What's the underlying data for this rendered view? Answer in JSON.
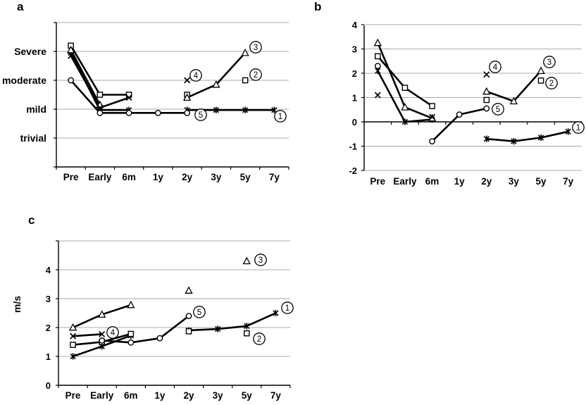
{
  "page": {
    "background": "#ffffff",
    "line_color": "#000000",
    "gridline_color": "#a9a9a9"
  },
  "chart_data": [
    {
      "id": "a",
      "panel_label": "a",
      "type": "line",
      "categories": [
        "Pre",
        "Early",
        "6m",
        "1y",
        "2y",
        "3y",
        "5y",
        "7y"
      ],
      "y_axis": {
        "kind": "category",
        "ticks": [
          {
            "v": 4,
            "label": "Severe"
          },
          {
            "v": 3,
            "label": "moderate"
          },
          {
            "v": 2,
            "label": "mild"
          },
          {
            "v": 1,
            "label": "trivial"
          }
        ],
        "gridline_values": [
          1,
          2,
          3,
          4,
          5
        ],
        "ylim": [
          0,
          5
        ],
        "grid": true
      },
      "series": [
        {
          "name": "1",
          "marker": "asterisk",
          "values": [
            3.95,
            1.97,
            1.97,
            null,
            1.97,
            1.97,
            1.97,
            1.97
          ]
        },
        {
          "name": "2",
          "marker": "square",
          "values": [
            4.2,
            2.5,
            2.5,
            null,
            2.5,
            null,
            3,
            null
          ]
        },
        {
          "name": "3",
          "marker": "triangle",
          "values": [
            4.05,
            2.15,
            null,
            null,
            2.4,
            2.85,
            3.95,
            null
          ]
        },
        {
          "name": "4",
          "marker": "x",
          "values": [
            3.85,
            2.05,
            2.4,
            null,
            3,
            null,
            null,
            null
          ]
        },
        {
          "name": "5",
          "marker": "circle",
          "values": [
            3,
            1.87,
            1.87,
            1.87,
            1.87,
            null,
            null,
            null
          ]
        }
      ],
      "annotations": [
        {
          "text": "1",
          "x": 398,
          "y": 165
        },
        {
          "text": "2",
          "x": 363,
          "y": 106
        },
        {
          "text": "3",
          "x": 363,
          "y": 67
        },
        {
          "text": "4",
          "x": 278,
          "y": 107
        },
        {
          "text": "5",
          "x": 285,
          "y": 163
        }
      ]
    },
    {
      "id": "b",
      "panel_label": "b",
      "type": "line",
      "categories": [
        "Pre",
        "Early",
        "6m",
        "1y",
        "2y",
        "3y",
        "5y",
        "7y"
      ],
      "y_axis": {
        "kind": "numeric",
        "ticks": [
          {
            "v": 4,
            "label": "4"
          },
          {
            "v": 3,
            "label": "3"
          },
          {
            "v": 2,
            "label": "2"
          },
          {
            "v": 1,
            "label": "1"
          },
          {
            "v": 0,
            "label": "0"
          },
          {
            "v": -1,
            "label": "-1"
          },
          {
            "v": -2,
            "label": "-2"
          }
        ],
        "gridline_values": [
          -2,
          -1,
          1,
          2,
          3,
          4
        ],
        "ylim": [
          -2,
          4
        ],
        "x_axis_at_zero": true,
        "grid": true
      },
      "series": [
        {
          "name": "1",
          "marker": "asterisk",
          "values": [
            2.1,
            0,
            0.1,
            null,
            -0.7,
            -0.8,
            -0.65,
            -0.4
          ]
        },
        {
          "name": "2",
          "marker": "square",
          "values": [
            2.7,
            1.4,
            0.65,
            null,
            0.9,
            null,
            1.7,
            null
          ]
        },
        {
          "name": "3",
          "marker": "triangle",
          "values": [
            3.25,
            0.6,
            0.15,
            null,
            1.25,
            0.85,
            2.1,
            null
          ]
        },
        {
          "name": "4",
          "marker": "x",
          "values": [
            1.1,
            null,
            0.2,
            null,
            1.95,
            null,
            null,
            null
          ]
        },
        {
          "name": "5",
          "marker": "circle",
          "values": [
            2.3,
            null,
            -0.8,
            0.3,
            0.55,
            null,
            null,
            null
          ]
        }
      ],
      "annotations": [
        {
          "text": "1",
          "x": 405,
          "y": 181
        },
        {
          "text": "2",
          "x": 367,
          "y": 118
        },
        {
          "text": "3",
          "x": 364,
          "y": 88
        },
        {
          "text": "4",
          "x": 287,
          "y": 95
        },
        {
          "text": "5",
          "x": 291,
          "y": 155
        }
      ]
    },
    {
      "id": "c",
      "panel_label": "c",
      "type": "line",
      "categories": [
        "Pre",
        "Early",
        "6m",
        "1y",
        "2y",
        "3y",
        "5y",
        "7y"
      ],
      "y_axis": {
        "kind": "numeric",
        "label": "m/s",
        "ticks": [
          {
            "v": 4,
            "label": "4"
          },
          {
            "v": 3,
            "label": "3"
          },
          {
            "v": 2,
            "label": "2"
          },
          {
            "v": 1,
            "label": "1"
          },
          {
            "v": 0,
            "label": "0"
          }
        ],
        "gridline_values": [
          1,
          2,
          3,
          4,
          5
        ],
        "ylim": [
          0,
          5
        ],
        "grid": true
      },
      "series": [
        {
          "name": "1",
          "marker": "asterisk",
          "values": [
            1,
            1.35,
            1.72,
            null,
            1.9,
            1.95,
            2.05,
            2.5
          ]
        },
        {
          "name": "2",
          "marker": "square",
          "values": [
            1.4,
            1.5,
            1.78,
            null,
            1.87,
            null,
            1.8,
            null
          ]
        },
        {
          "name": "3",
          "marker": "triangle",
          "values": [
            2,
            2.45,
            2.78,
            null,
            3.28,
            null,
            4.3,
            null
          ]
        },
        {
          "name": "4",
          "marker": "x",
          "values": [
            1.7,
            1.77,
            null,
            null,
            null,
            null,
            null,
            null
          ]
        },
        {
          "name": "5",
          "marker": "circle",
          "values": [
            null,
            1.55,
            1.48,
            1.63,
            2.4,
            null,
            null,
            null
          ]
        }
      ],
      "annotations": [
        {
          "text": "1",
          "x": 408,
          "y": 147
        },
        {
          "text": "2",
          "x": 368,
          "y": 191
        },
        {
          "text": "3",
          "x": 370,
          "y": 79
        },
        {
          "text": "4",
          "x": 160,
          "y": 182
        },
        {
          "text": "5",
          "x": 283,
          "y": 153
        }
      ]
    }
  ]
}
